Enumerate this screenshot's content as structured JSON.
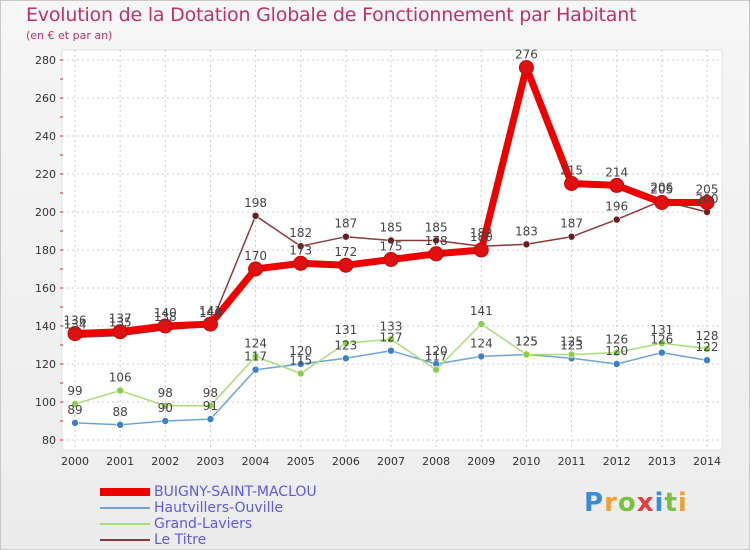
{
  "colors": {
    "title": "#c0306a",
    "axis_text": "#333333",
    "grid": "#cccccc",
    "legend_text": "#5a5aee"
  },
  "logo": {
    "text": "Proxiti",
    "letters": [
      "P",
      "r",
      "o",
      "x",
      "i",
      "t",
      "i"
    ],
    "letter_colors": [
      "#3a8ad6",
      "#f0a030",
      "#7ac143",
      "#e04040",
      "#3a8ad6",
      "#7ac143",
      "#f0a030"
    ]
  },
  "chart_data": {
    "type": "line",
    "title": "Evolution de la Dotation Globale de Fonctionnement par Habitant",
    "subtitle": "(en € et par an)",
    "x": [
      "2000",
      "2001",
      "2002",
      "2003",
      "2004",
      "2005",
      "2006",
      "2007",
      "2008",
      "2009",
      "2010",
      "2011",
      "2012",
      "2013",
      "2014"
    ],
    "ylim": [
      80,
      280
    ],
    "yticks": [
      80,
      100,
      120,
      140,
      160,
      180,
      200,
      220,
      240,
      260,
      280
    ],
    "grid": true,
    "legend_position": "bottom-left",
    "series": [
      {
        "name": "BUIGNY-SAINT-MACLOU",
        "color": "#ee0000",
        "marker": "#dd1111",
        "thick": true,
        "values": [
          136,
          137,
          140,
          141,
          170,
          173,
          172,
          175,
          178,
          180,
          276,
          215,
          214,
          205,
          205
        ]
      },
      {
        "name": "Hautvillers-Ouville",
        "color": "#6fa3d8",
        "marker": "#3d7fc8",
        "thick": false,
        "values": [
          89,
          88,
          90,
          91,
          117,
          120,
          123,
          127,
          120,
          124,
          125,
          123,
          120,
          126,
          122
        ]
      },
      {
        "name": "Grand-Laviers",
        "color": "#a9dd7a",
        "marker": "#8ccd4c",
        "thick": false,
        "values": [
          99,
          106,
          98,
          98,
          124,
          115,
          131,
          133,
          117,
          141,
          125,
          125,
          126,
          131,
          128
        ]
      },
      {
        "name": "Le Titre",
        "color": "#8a3a3a",
        "marker": "#6b1e1e",
        "thick": false,
        "values": [
          134,
          135,
          138,
          140,
          198,
          182,
          187,
          185,
          185,
          182,
          183,
          187,
          196,
          206,
          200
        ]
      }
    ]
  }
}
